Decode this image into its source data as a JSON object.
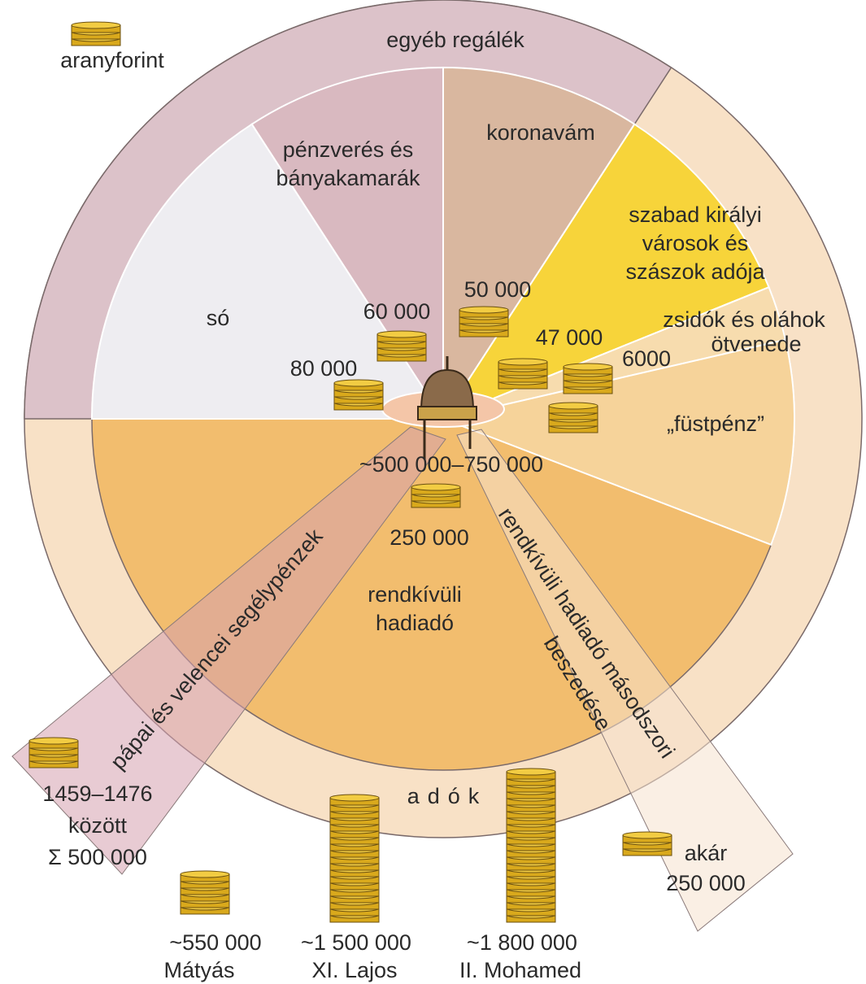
{
  "legend": {
    "label": "aranyforint"
  },
  "outer_ring": {
    "top": "egyéb regálék",
    "bottom": "adók"
  },
  "sectors": [
    {
      "lines": [
        "só"
      ],
      "amount": "80 000"
    },
    {
      "lines": [
        "pénzverés és",
        "bányakamarák"
      ],
      "amount": "60 000"
    },
    {
      "lines": [
        "koronavám"
      ],
      "amount": "50 000"
    },
    {
      "lines": [
        "szabad királyi",
        "városok és",
        "szászok adója"
      ],
      "amount": "47 000"
    },
    {
      "lines": [
        "zsidók és oláhok",
        "ötvenede"
      ],
      "amount": "6000"
    },
    {
      "lines": [
        "„füstpénz”"
      ]
    },
    {
      "lines": [
        "rendkívüli",
        "hadiadó"
      ],
      "amount": "250 000"
    }
  ],
  "center_total": "~500 000–750 000",
  "beams": [
    {
      "lines": [
        "pápai és velencei segélypénzek"
      ],
      "amount_lines": [
        "1459–1476",
        "között",
        "Σ 500 000"
      ]
    },
    {
      "lines": [
        "rendkívüli hadiadó másodszori",
        "beszedése"
      ],
      "amount_lines": [
        "akár",
        "250 000"
      ]
    }
  ],
  "comparisons": [
    {
      "amount": "~550 000",
      "name": "Mátyás"
    },
    {
      "amount": "~1 500 000",
      "name": "XI. Lajos"
    },
    {
      "amount": "~1 800 000",
      "name": "II. Mohamed"
    }
  ]
}
